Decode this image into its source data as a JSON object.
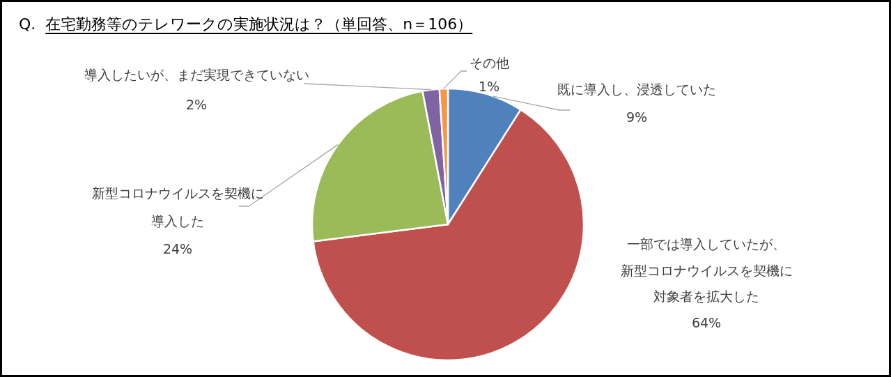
{
  "chart_data": {
    "type": "pie",
    "title": "Q. 在宅勤務等のテレワークの実施状況は？（単回答、n＝106）",
    "categories": [
      "既に導入し、浸透していた",
      "一部では導入していたが、新型コロナウイルスを契機に対象者を拡大した",
      "新型コロナウイルスを契機に導入した",
      "導入したいが、まだ実現できていない",
      "その他"
    ],
    "values": [
      9,
      64,
      24,
      2,
      1
    ],
    "value_labels": [
      "9%",
      "64%",
      "24%",
      "2%",
      "1%"
    ],
    "colors": [
      "#4f81bd",
      "#c0504d",
      "#9bbb59",
      "#8064a2",
      "#f79646"
    ]
  }
}
